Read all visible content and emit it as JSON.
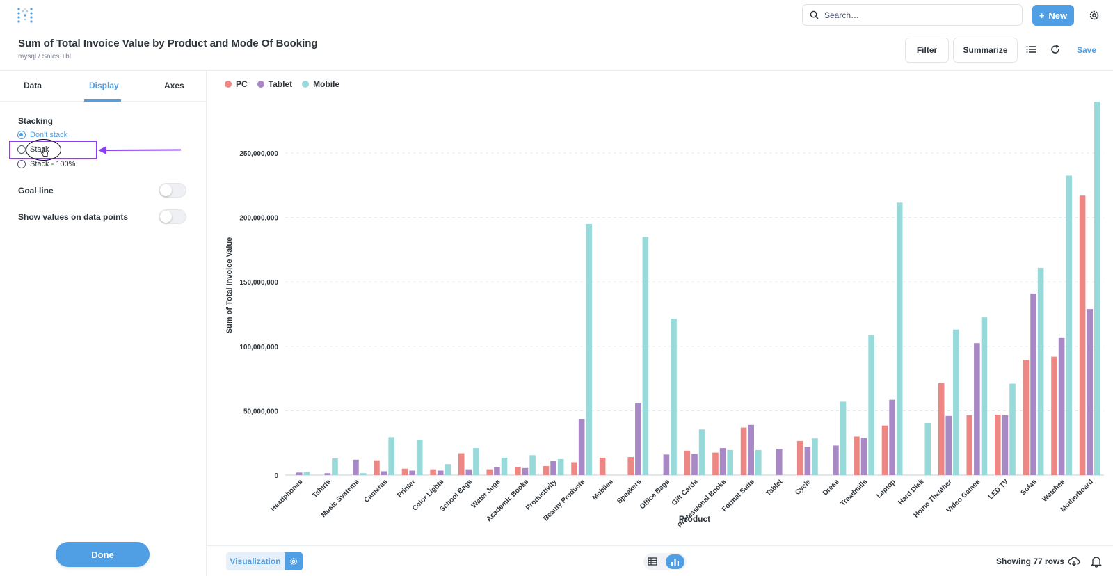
{
  "search": {
    "placeholder": "Search…"
  },
  "top": {
    "new_label": "New"
  },
  "header": {
    "title": "Sum of Total Invoice Value by Product and Mode Of Booking",
    "breadcrumb": "mysql  /  Sales Tbl",
    "filter_label": "Filter",
    "summarize_label": "Summarize",
    "save_label": "Save"
  },
  "sidebar": {
    "tabs": [
      {
        "label": "Data"
      },
      {
        "label": "Display"
      },
      {
        "label": "Axes"
      }
    ],
    "active_tab": "Display",
    "stacking_label": "Stacking",
    "stacking_options": [
      {
        "label": "Don't stack",
        "checked": true
      },
      {
        "label": "Stack",
        "checked": false
      },
      {
        "label": "Stack - 100%",
        "checked": false
      }
    ],
    "goal_line_label": "Goal line",
    "goal_line_on": false,
    "show_values_label": "Show values on data points",
    "show_values_on": false,
    "done_label": "Done"
  },
  "colors": {
    "accent": "#509ee3",
    "pc": "#ed8784",
    "tablet": "#a989c5",
    "mobile": "#98d9d9",
    "annotation": "#8a3ff0"
  },
  "chart_data": {
    "type": "bar",
    "xlabel": "Product",
    "ylabel": "Sum of Total Invoice Value",
    "ylim": [
      0,
      290000000
    ],
    "yticks": [
      0,
      50000000,
      100000000,
      150000000,
      200000000,
      250000000
    ],
    "ytick_labels": [
      "0",
      "50,000,000",
      "100,000,000",
      "150,000,000",
      "200,000,000",
      "250,000,000"
    ],
    "grid": true,
    "legend_position": "top-left",
    "categories": [
      "Headphones",
      "Tshirts",
      "Music Systems",
      "Cameras",
      "Printer",
      "Color Lights",
      "School Bags",
      "Water Jugs",
      "Academic Books",
      "Productivity",
      "Beauty Products",
      "Mobiles",
      "Speakers",
      "Office Bags",
      "Gift Cards",
      "Professional Books",
      "Formal Suits",
      "Tablet",
      "Cycle",
      "Dress",
      "Treadmills",
      "Laptop",
      "Hard Disk",
      "Home Theather",
      "Video Games",
      "LED TV",
      "Sofas",
      "Watches",
      "Motherboard"
    ],
    "series": [
      {
        "name": "PC",
        "values": [
          0,
          0,
          0,
          11500000,
          5000000,
          4500000,
          17000000,
          4500000,
          6500000,
          7000000,
          10000000,
          13500000,
          14000000,
          0,
          19000000,
          17500000,
          37000000,
          0,
          26500000,
          0,
          30000000,
          38500000,
          0,
          71500000,
          46500000,
          47000000,
          89500000,
          92000000,
          217000000
        ]
      },
      {
        "name": "Tablet",
        "values": [
          2000000,
          1500000,
          12000000,
          3000000,
          3500000,
          3500000,
          4500000,
          6500000,
          5500000,
          11000000,
          43500000,
          0,
          56000000,
          16000000,
          16500000,
          21000000,
          39000000,
          20500000,
          22000000,
          23000000,
          29000000,
          58500000,
          0,
          46000000,
          102500000,
          46500000,
          141000000,
          106500000,
          129000000
        ]
      },
      {
        "name": "Mobile",
        "values": [
          2500000,
          13000000,
          1500000,
          29500000,
          27500000,
          8500000,
          21000000,
          13500000,
          15500000,
          12500000,
          195000000,
          0,
          185000000,
          121500000,
          35500000,
          19500000,
          19500000,
          0,
          28500000,
          57000000,
          108500000,
          211500000,
          40500000,
          113000000,
          122500000,
          71000000,
          161000000,
          232500000,
          290000000
        ]
      }
    ]
  },
  "footer": {
    "visualization_label": "Visualization",
    "rows_text": "Showing 77 rows"
  }
}
